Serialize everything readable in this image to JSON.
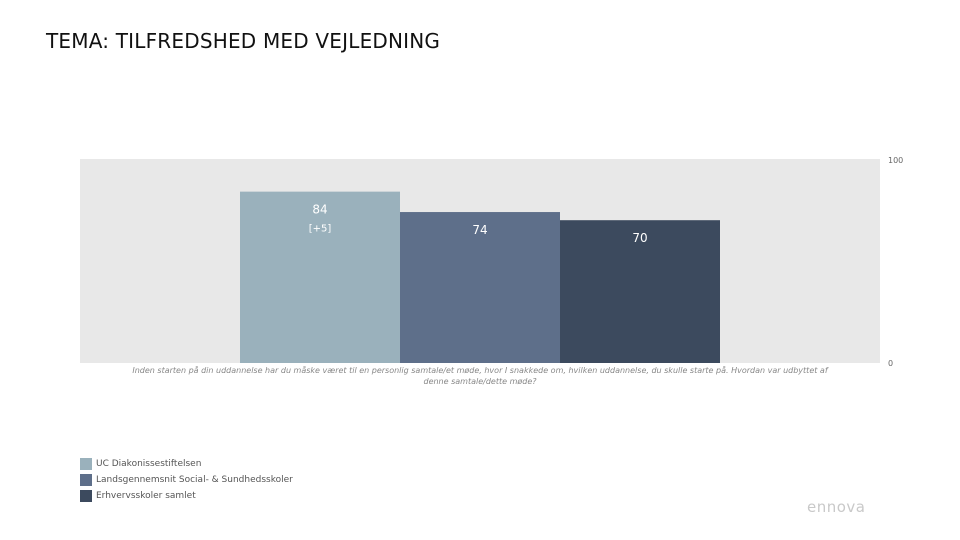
{
  "page": {
    "title": "TEMA: TILFREDSHED MED VEJLEDNING",
    "logo_text": "ennova"
  },
  "chart_data": {
    "type": "bar",
    "question": "Inden starten på din uddannelse har du måske været til en personlig samtale/et møde, hvor I snakkede om, hvilken uddannelse, du skulle starte på. Hvordan var udbyttet af denne samtale/dette møde?",
    "ylim": [
      0,
      100
    ],
    "yticks": [
      "100",
      "0"
    ],
    "grid": false,
    "legend_position": "bottom-left",
    "background_color": "#e8e8e8",
    "series": [
      {
        "name": "UC Diakonissestiftelsen",
        "value": 84,
        "value_label": "84",
        "sublabel": "[+5]",
        "color": "#9ab1bc"
      },
      {
        "name": "Landsgennemsnit Social- & Sundhedsskoler",
        "value": 74,
        "value_label": "74",
        "sublabel": "",
        "color": "#5e6f8a"
      },
      {
        "name": "Erhvervsskoler samlet",
        "value": 70,
        "value_label": "70",
        "sublabel": "",
        "color": "#3c4a5e"
      }
    ]
  }
}
